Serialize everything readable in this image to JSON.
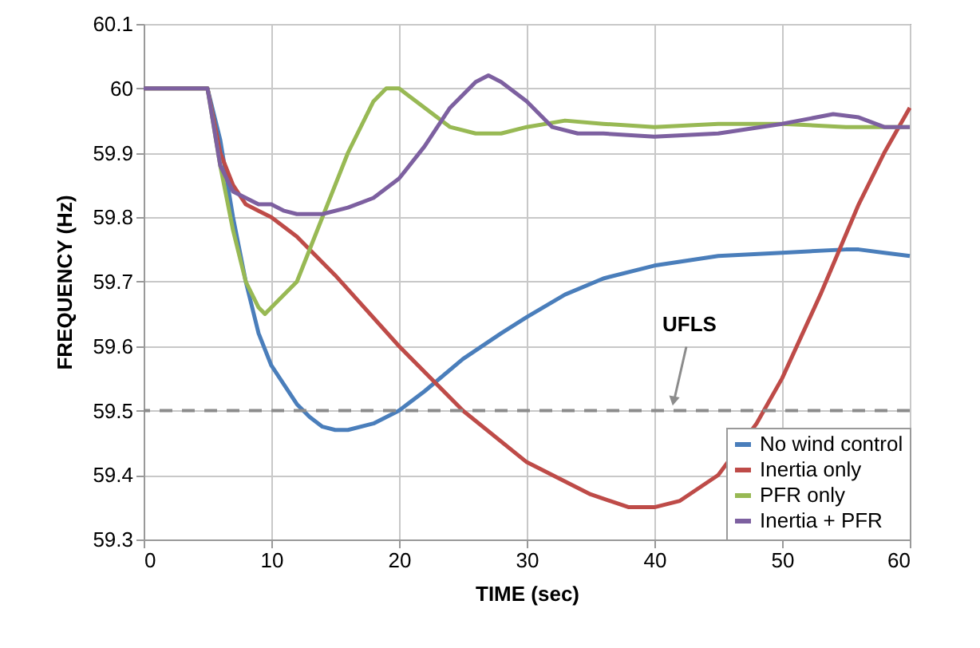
{
  "chart_data": {
    "type": "line",
    "xlabel": "TIME (sec)",
    "ylabel": "FREQUENCY (Hz)",
    "xlim": [
      0,
      60
    ],
    "xticks": [
      0,
      10,
      20,
      30,
      40,
      50,
      60
    ],
    "ylim": [
      59.3,
      60.1
    ],
    "yticks": [
      59.3,
      59.4,
      59.5,
      59.6,
      59.7,
      59.8,
      59.9,
      {
        "value": 60,
        "label": "60"
      },
      60.1
    ],
    "grid": true,
    "legend": "bottom right",
    "line_style": "solid",
    "marker": "none",
    "series": [
      {
        "name": "No wind control",
        "color": "#4a7ebb",
        "x": [
          0,
          5,
          6,
          7,
          8,
          9,
          10,
          11,
          12,
          13,
          14,
          15,
          16,
          18,
          20,
          22,
          25,
          28,
          30,
          33,
          36,
          40,
          45,
          50,
          55,
          56,
          58,
          60
        ],
        "values": [
          60,
          60,
          59.92,
          59.8,
          59.7,
          59.62,
          59.57,
          59.54,
          59.51,
          59.49,
          59.475,
          59.47,
          59.47,
          59.48,
          59.5,
          59.53,
          59.58,
          59.62,
          59.645,
          59.68,
          59.705,
          59.725,
          59.74,
          59.745,
          59.75,
          59.75,
          59.745,
          59.74
        ]
      },
      {
        "name": "Inertia only",
        "color": "#be4b48",
        "x": [
          0,
          5,
          6,
          7,
          8,
          9,
          10,
          12,
          15,
          20,
          25,
          30,
          35,
          38,
          40,
          42,
          45,
          48,
          50,
          53,
          56,
          58,
          60
        ],
        "values": [
          60,
          60,
          59.9,
          59.85,
          59.82,
          59.81,
          59.8,
          59.77,
          59.71,
          59.6,
          59.5,
          59.42,
          59.37,
          59.35,
          59.35,
          59.36,
          59.4,
          59.48,
          59.55,
          59.68,
          59.82,
          59.9,
          59.97
        ]
      },
      {
        "name": "PFR only",
        "color": "#98b954",
        "x": [
          0,
          5,
          6,
          7,
          8,
          9,
          9.5,
          10,
          12,
          14,
          16,
          18,
          19,
          20,
          22,
          24,
          26,
          28,
          30,
          33,
          36,
          40,
          45,
          50,
          55,
          60
        ],
        "values": [
          60,
          60,
          59.88,
          59.78,
          59.7,
          59.66,
          59.65,
          59.66,
          59.7,
          59.8,
          59.9,
          59.98,
          60.0,
          60.0,
          59.97,
          59.94,
          59.93,
          59.93,
          59.94,
          59.95,
          59.945,
          59.94,
          59.945,
          59.945,
          59.94,
          59.94
        ]
      },
      {
        "name": "Inertia + PFR",
        "color": "#7d60a0",
        "x": [
          0,
          5,
          6,
          7,
          8,
          9,
          10,
          11,
          12,
          14,
          16,
          18,
          20,
          22,
          24,
          26,
          27,
          28,
          30,
          32,
          34,
          36,
          40,
          45,
          50,
          54,
          56,
          58,
          60
        ],
        "values": [
          60,
          60,
          59.88,
          59.84,
          59.83,
          59.82,
          59.82,
          59.81,
          59.805,
          59.805,
          59.815,
          59.83,
          59.86,
          59.91,
          59.97,
          60.01,
          60.02,
          60.01,
          59.98,
          59.94,
          59.93,
          59.93,
          59.925,
          59.93,
          59.945,
          59.96,
          59.955,
          59.94,
          59.94
        ]
      }
    ],
    "ref_lines": [
      {
        "axis": "y",
        "value": 59.5,
        "color": "#8c8c8c",
        "line_style": "dashed",
        "label": "UFLS"
      }
    ]
  }
}
